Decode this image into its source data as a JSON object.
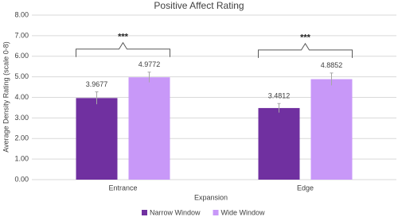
{
  "chart_data": {
    "type": "bar",
    "title": "Positive Affect Rating",
    "x_label": "Expansion",
    "y_label": "Average Density Rating (scale 0-8)",
    "categories": [
      "Entrance",
      "Edge"
    ],
    "series": [
      {
        "name": "Narrow Window",
        "color": "#7030a0",
        "values": [
          3.9677,
          3.4812
        ],
        "errors": [
          0.3,
          0.22
        ]
      },
      {
        "name": "Wide Window",
        "color": "#c898f8",
        "values": [
          4.9772,
          4.8852
        ],
        "errors": [
          0.25,
          0.3
        ]
      }
    ],
    "annotations": [
      "***",
      "***"
    ],
    "ylim": [
      0,
      8
    ],
    "yticks": [
      {
        "value": 0,
        "label": "0.00"
      },
      {
        "value": 1,
        "label": "1.00"
      },
      {
        "value": 2,
        "label": "2.00"
      },
      {
        "value": 3,
        "label": "3.00"
      },
      {
        "value": 4,
        "label": "4.00"
      },
      {
        "value": 5,
        "label": "5.00"
      },
      {
        "value": 6,
        "label": "6.00"
      },
      {
        "value": 7,
        "label": "7.00"
      },
      {
        "value": 8,
        "label": "8.00"
      }
    ],
    "grid": true,
    "legend": "bottom"
  }
}
